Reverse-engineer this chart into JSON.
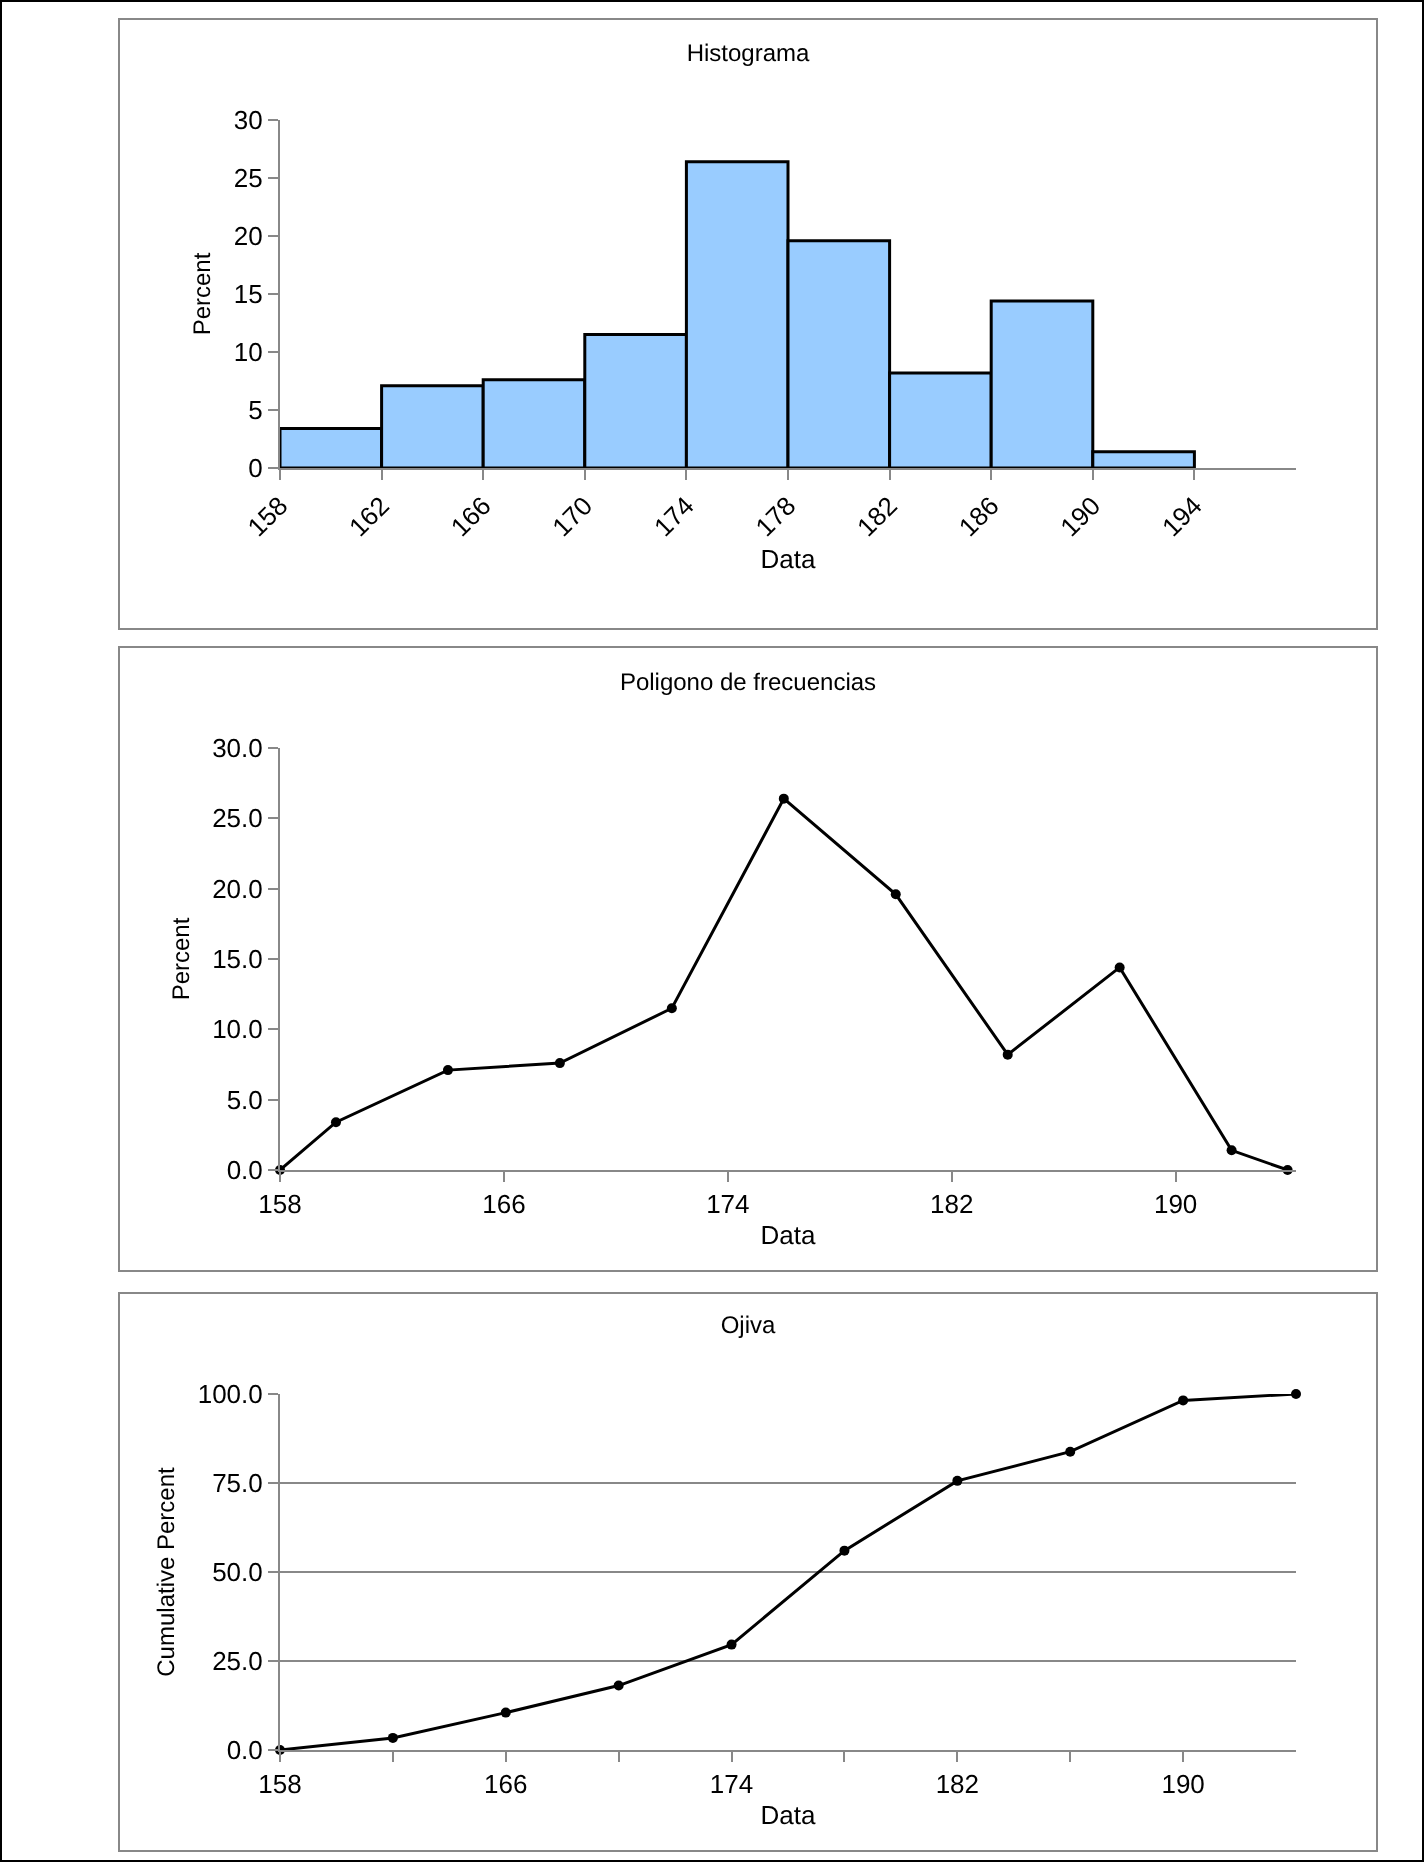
{
  "chart_data": [
    {
      "type": "histogram",
      "title": "Histograma",
      "xlabel": "Data",
      "ylabel": "Percent",
      "color": "#99ccff",
      "bins": [
        158,
        162,
        166,
        170,
        174,
        178,
        182,
        186,
        190,
        194
      ],
      "values": [
        3.4,
        7.1,
        7.6,
        11.5,
        26.4,
        19.6,
        8.2,
        14.4,
        1.4
      ],
      "xlim": [
        158,
        198
      ],
      "xticks": [
        158,
        162,
        166,
        170,
        174,
        178,
        182,
        186,
        190,
        194
      ],
      "ylim": [
        0,
        30
      ],
      "yticks": [
        0,
        5,
        10,
        15,
        20,
        25,
        30
      ],
      "grid": false,
      "legend": false
    },
    {
      "type": "line",
      "title": "Poligono de frecuencias",
      "xlabel": "Data",
      "ylabel": "Percent",
      "color": "#000000",
      "marker": "circle",
      "line_style": "solid",
      "x": [
        158,
        160,
        164,
        168,
        172,
        176,
        180,
        184,
        188,
        192,
        194
      ],
      "values": [
        0,
        3.4,
        7.1,
        7.6,
        11.5,
        26.4,
        19.6,
        8.2,
        14.4,
        1.4,
        0
      ],
      "xlim": [
        158,
        194.3
      ],
      "xticks": [
        158,
        166,
        174,
        182,
        190
      ],
      "ylim": [
        0,
        30
      ],
      "yticks": [
        {
          "value": 0,
          "label": "0.0"
        },
        {
          "value": 5,
          "label": "5.0"
        },
        {
          "value": 10,
          "label": "10.0"
        },
        {
          "value": 15,
          "label": "15.0"
        },
        {
          "value": 20,
          "label": "20.0"
        },
        {
          "value": 25,
          "label": "25.0"
        },
        {
          "value": 30,
          "label": "30.0"
        }
      ],
      "grid": false,
      "legend": false
    },
    {
      "type": "line",
      "title": "Ojiva",
      "xlabel": "Data",
      "ylabel": "Cumulative Percent",
      "color": "#000000",
      "marker": "circle",
      "line_style": "solid",
      "x": [
        158,
        162,
        166,
        170,
        174,
        178,
        182,
        186,
        190,
        194
      ],
      "values": [
        0,
        3.4,
        10.5,
        18.1,
        29.6,
        56.0,
        75.6,
        83.8,
        98.2,
        100
      ],
      "xlim": [
        158,
        194
      ],
      "xticks": [
        158,
        {
          "value": 162,
          "label": null
        },
        166,
        {
          "value": 170,
          "label": null
        },
        174,
        {
          "value": 178,
          "label": null
        },
        182,
        {
          "value": 186,
          "label": null
        },
        190
      ],
      "ylim": [
        0,
        100
      ],
      "yticks": [
        {
          "value": 0,
          "label": "0.0"
        },
        {
          "value": 25,
          "label": "25.0"
        },
        {
          "value": 50,
          "label": "50.0"
        },
        {
          "value": 75,
          "label": "75.0"
        },
        {
          "value": 100,
          "label": "100.0"
        }
      ],
      "grid": "y",
      "legend": false
    }
  ]
}
